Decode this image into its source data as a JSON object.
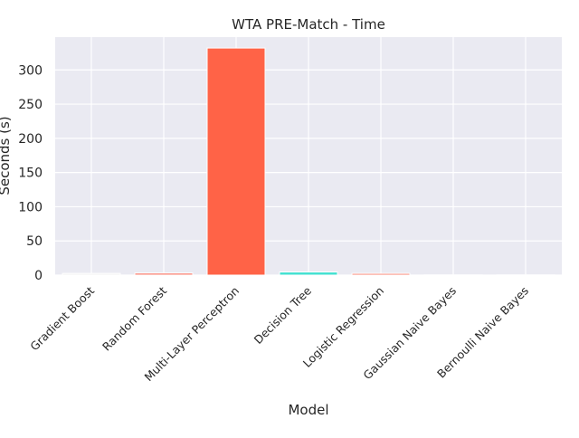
{
  "chart_data": {
    "type": "bar",
    "title": "WTA PRE-Match - Time",
    "xlabel": "Model",
    "ylabel": "Seconds (s)",
    "categories": [
      "Gradient Boost",
      "Random Forest",
      "Multi-Layer Perceptron",
      "Decision Tree",
      "Logistic Regression",
      "Gaussian Naive Bayes",
      "Bernoulli Naive Bayes"
    ],
    "values": [
      2.5,
      3.0,
      332,
      4.5,
      2.5,
      0.3,
      0.3
    ],
    "colors": [
      "#f2f2f2",
      "#fa8072",
      "#ff6347",
      "#40e0d0",
      "#fa8072",
      "#ffffff",
      "#ffffff"
    ],
    "yticks": [
      0,
      50,
      100,
      150,
      200,
      250,
      300
    ],
    "ylim": [
      0,
      348
    ],
    "grid": true,
    "background": "#eaeaf2"
  }
}
